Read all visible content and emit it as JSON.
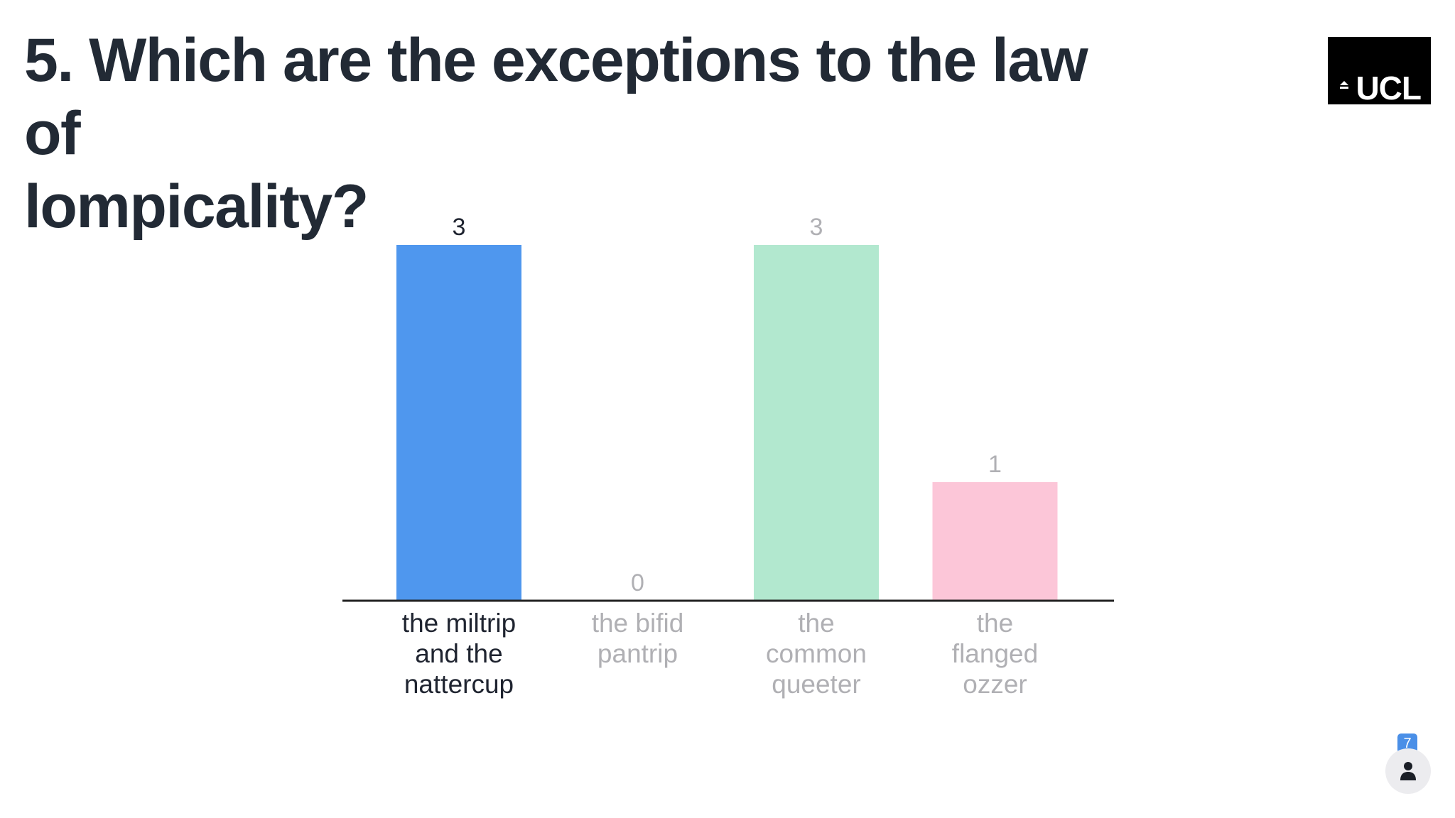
{
  "question": {
    "line1": "5. Which are the exceptions to the law of",
    "line2": "lompicality?"
  },
  "logo": {
    "text": "UCL"
  },
  "participants": {
    "count": "7",
    "icon": "person-icon"
  },
  "colors": {
    "bar1": "#4f97ee",
    "bar2": "#cccccc",
    "bar3": "#b2e8cf",
    "bar4": "#fcc6d8",
    "active_label": "#1f2430",
    "muted_label": "#b0b0b4",
    "axis": "#222222"
  },
  "chart_data": {
    "type": "bar",
    "title": "5. Which are the exceptions to the law of lompicality?",
    "xlabel": "",
    "ylabel": "",
    "ylim": [
      0,
      3
    ],
    "grid": false,
    "categories": [
      "the miltrip and the nattercup",
      "the bifid pantrip",
      "the common queeter",
      "the flanged ozzer"
    ],
    "category_lines": [
      [
        "the miltrip",
        "and the",
        "nattercup"
      ],
      [
        "the bifid",
        "pantrip"
      ],
      [
        "the",
        "common",
        "queeter"
      ],
      [
        "the",
        "flanged",
        "ozzer"
      ]
    ],
    "values": [
      3,
      0,
      3,
      1
    ],
    "value_labels": [
      "3",
      "0",
      "3",
      "1"
    ],
    "highlighted": [
      true,
      false,
      false,
      false
    ]
  }
}
